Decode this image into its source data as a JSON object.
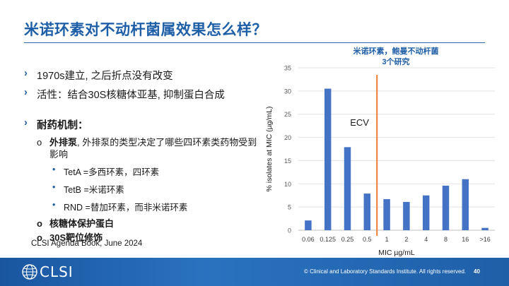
{
  "slide": {
    "title": "米诺环素对不动杆菌属效果怎么样？",
    "page_number": "40"
  },
  "bullets": {
    "item1": "1970s建立, 之后折点没有改变",
    "item2": "活性：结合30S核糖体亚基, 抑制蛋白合成",
    "item3": "耐药机制：",
    "sub1": "外排泵, 外排泵的类型决定了哪些四环素类药物受到影响",
    "sub1_bold": "外排泵",
    "sub1_rest": ", 外排泵的类型决定了哪些四环素类药物受到影响",
    "sub1_1": "TetA =多西环素，四环素",
    "sub1_2": "TetB =米诺环素",
    "sub1_3": "RND =替加环素，而非米诺环素",
    "sub2": "核糖体保护蛋白",
    "sub3": "30S靶位修饰",
    "marker_main": "›",
    "marker_sub": "o",
    "marker_subsub": "•"
  },
  "reference": "CLSI Agenda Book, June 2024",
  "footer": {
    "logo_text": "CLSI",
    "copyright": "© Clinical and Laboratory Standards Institute. All rights reserved."
  },
  "chart_title_line1": "米诺环素，鲍曼不动杆菌",
  "chart_title_line2": "3个研究",
  "chart_data": {
    "type": "bar",
    "title": "米诺环素，鲍曼不动杆菌 3个研究",
    "categories": [
      "0.06",
      "0.125",
      "0.25",
      "0.5",
      "1",
      "2",
      "4",
      "8",
      "16",
      ">16"
    ],
    "values": [
      2.1,
      30.5,
      17.9,
      7.9,
      6.7,
      6.1,
      7.5,
      9.6,
      11.0,
      0.5
    ],
    "xlabel": "MIC µg/mL",
    "ylabel": "% isolates at MIC (µg/mL)",
    "ylim": [
      0,
      35
    ],
    "yticks": [
      0,
      5,
      10,
      15,
      20,
      25,
      30,
      35
    ],
    "grid": true,
    "bar_color": "#4472c4",
    "annotation": {
      "label": "ECV",
      "between": [
        "0.5",
        "1"
      ],
      "color": "#ed7d31"
    }
  }
}
